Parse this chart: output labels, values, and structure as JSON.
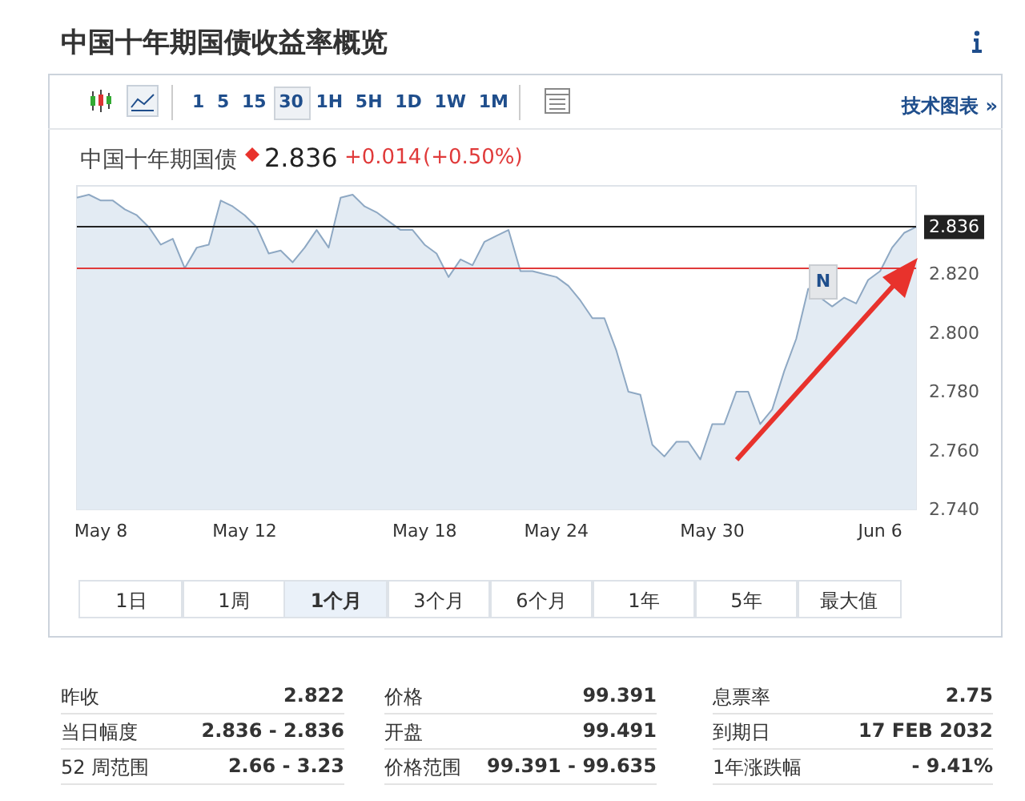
{
  "chart_data": [
    {
      "type": "area",
      "title": "中国十年期国债收益率概览",
      "annotations": [
        "中国十年期国债",
        "2.836",
        "+0.014",
        "(+0.50%)",
        "技术图表 »",
        "N",
        "1 5 15 30 1H 5H 1D 1W 1M",
        "1日",
        "1周",
        "1个月",
        "3个月",
        "6个月",
        "1年",
        "5年",
        "最大值"
      ],
      "categories": [
        null,
        null,
        "May 8",
        null,
        null,
        null,
        null,
        null,
        null,
        null,
        null,
        null,
        null,
        null,
        "May 12",
        null,
        null,
        null,
        null,
        null,
        null,
        null,
        null,
        null,
        null,
        null,
        null,
        null,
        null,
        "May 18",
        null,
        null,
        null,
        null,
        null,
        null,
        null,
        null,
        null,
        null,
        "May 24",
        null,
        null,
        null,
        null,
        null,
        null,
        null,
        null,
        null,
        null,
        null,
        null,
        "May 30",
        null,
        null,
        null,
        null,
        null,
        null,
        null,
        null,
        null,
        null,
        null,
        null,
        null,
        "Jun 6",
        null,
        null,
        null
      ],
      "series": [
        {
          "color": "#8ea8c3",
          "values": [
            2.846,
            2.847,
            2.845,
            2.845,
            2.842,
            2.84,
            2.836,
            2.83,
            2.832,
            2.822,
            2.829,
            2.83,
            2.845,
            2.843,
            2.84,
            2.836,
            2.827,
            2.828,
            2.824,
            2.829,
            2.835,
            2.829,
            2.846,
            2.847,
            2.843,
            2.841,
            2.838,
            2.835,
            2.835,
            2.83,
            2.827,
            2.819,
            2.825,
            2.823,
            2.831,
            2.833,
            2.835,
            2.821,
            2.821,
            2.82,
            2.819,
            2.816,
            2.811,
            2.805,
            2.805,
            2.794,
            2.78,
            2.779,
            2.762,
            2.758,
            2.763,
            2.763,
            2.757,
            2.769,
            2.769,
            2.78,
            2.78,
            2.769,
            2.774,
            2.787,
            2.798,
            2.815,
            2.812,
            2.809,
            2.812,
            2.81,
            2.818,
            2.821,
            2.829,
            2.834,
            2.836
          ]
        }
      ],
      "ylim": [
        2.74,
        2.85
      ],
      "yticks": [
        {
          "value": 2.74,
          "label": "2.740"
        },
        {
          "value": 2.76,
          "label": "2.760"
        },
        {
          "value": 2.78,
          "label": "2.780"
        },
        {
          "value": 2.8,
          "label": "2.800"
        },
        {
          "value": 2.82,
          "label": "2.820"
        }
      ],
      "ref_lines": [
        {
          "axis": "y",
          "value": 2.836,
          "label": "2.836",
          "color": "#222222"
        },
        {
          "axis": "y",
          "value": 2.822,
          "color": "#e03a3a"
        }
      ],
      "marker": "none",
      "grid": false
    },
    {
      "type": "other",
      "annotations": [
        "昨收",
        "2.822",
        "当日幅度",
        "2.836 - 2.836",
        "52 周范围",
        "2.66 - 3.23",
        "价格",
        "99.391",
        "开盘",
        "99.491",
        "价格范围",
        "99.391 - 99.635",
        "息票率",
        "2.75",
        "到期日",
        "17 FEB 2032",
        "1年涨跌幅",
        "- 9.41%"
      ]
    }
  ]
}
